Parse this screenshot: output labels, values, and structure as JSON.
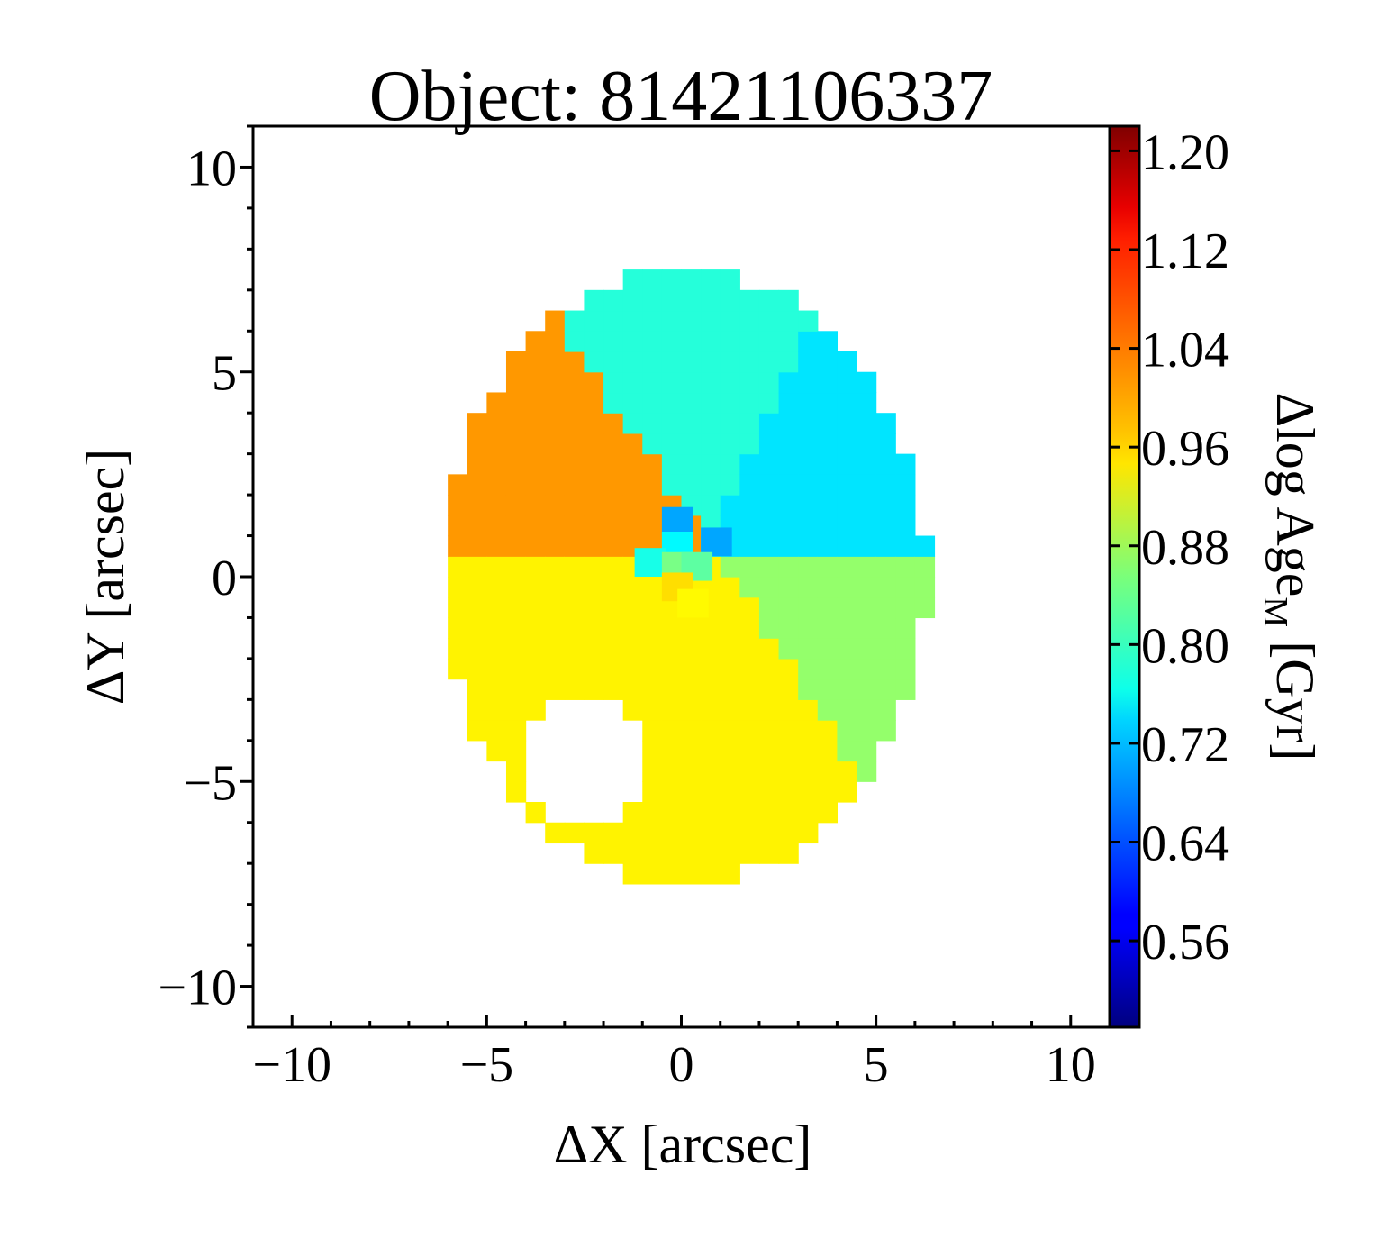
{
  "chart_data": {
    "type": "heatmap",
    "title": "Object: 81421106337",
    "xlabel": "ΔX [arcsec]",
    "ylabel": "ΔY [arcsec]",
    "xlim": [
      -11,
      11
    ],
    "ylim": [
      -11,
      11
    ],
    "xticks": [
      -10,
      -5,
      0,
      5,
      10
    ],
    "yticks": [
      -10,
      -5,
      0,
      5,
      10
    ],
    "xtick_labels": [
      "−10",
      "−5",
      "0",
      "5",
      "10"
    ],
    "ytick_labels": [
      "−10",
      "−5",
      "0",
      "5",
      "10"
    ],
    "colorbar": {
      "label": "Δlog Age",
      "label_subscript": "M",
      "label_unit": " [Gyr]",
      "range": [
        0.49,
        1.22
      ],
      "ticks": [
        1.2,
        1.12,
        1.04,
        0.96,
        0.88,
        0.8,
        0.72,
        0.64,
        0.56
      ],
      "tick_labels": [
        "1.20",
        "1.12",
        "1.04",
        "0.96",
        "0.88",
        "0.80",
        "0.72",
        "0.64",
        "0.56"
      ],
      "colormap": "jet"
    },
    "map": {
      "ellipse_center": [
        0.1,
        0.0
      ],
      "ellipse_semi_axes": [
        6.2,
        7.5
      ],
      "masked_hole_center": [
        -2.5,
        -4.6
      ],
      "masked_hole_radius": 1.6,
      "center_point": [
        0.7,
        0.75
      ],
      "regions": [
        {
          "name": "north",
          "angle_start": 65,
          "angle_end": 125,
          "value": 0.79
        },
        {
          "name": "north-east",
          "angle_start": 0,
          "angle_end": 65,
          "value": 0.745
        },
        {
          "name": "east",
          "angle_start": -55,
          "angle_end": 0,
          "value": 0.87
        },
        {
          "name": "south",
          "angle_start": -180,
          "angle_end": -55,
          "value": 0.955
        },
        {
          "name": "west",
          "angle_start": 125,
          "angle_end": 180,
          "value": 1.02
        }
      ],
      "central_bins": [
        {
          "x": -0.1,
          "y": 1.35,
          "value": 0.7
        },
        {
          "x": 0.9,
          "y": 0.85,
          "value": 0.7
        },
        {
          "x": -0.1,
          "y": 0.75,
          "value": 0.76
        },
        {
          "x": -0.8,
          "y": 0.35,
          "value": 0.78
        },
        {
          "x": -0.1,
          "y": 0.25,
          "value": 0.85
        },
        {
          "x": 0.4,
          "y": 0.25,
          "value": 0.83
        },
        {
          "x": -0.1,
          "y": -0.25,
          "value": 0.97
        },
        {
          "x": 0.3,
          "y": -0.65,
          "value": 0.95
        }
      ]
    }
  }
}
